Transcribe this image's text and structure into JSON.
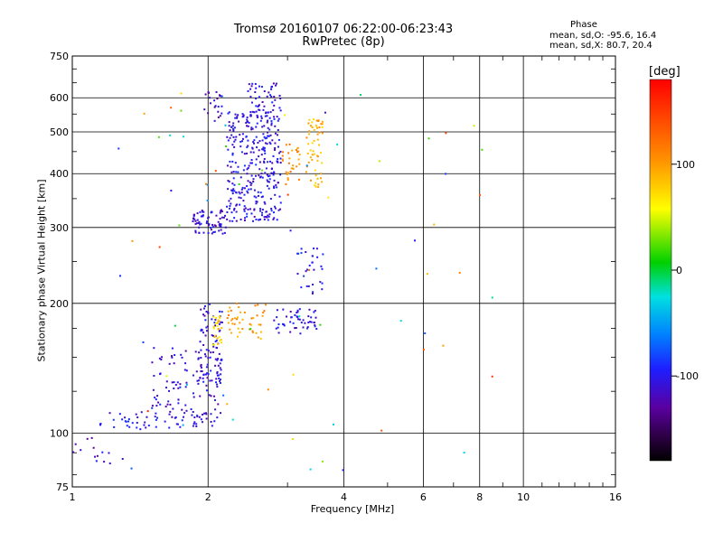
{
  "header": {
    "title_line1": "Tromsø 20160107 06:22:00-06:23:43",
    "title_line2": "RwPretec (8p)"
  },
  "phase_info": {
    "heading": "Phase",
    "line_o": "mean, sd,O: -95.6, 16.4",
    "line_x": "mean, sd,X:  80.7, 20.4"
  },
  "colorbar": {
    "unit_label": "[deg]",
    "range": [
      -180,
      180
    ],
    "tick_labels": [
      "100",
      "0",
      "-100"
    ],
    "tick_values": [
      100,
      0,
      -100
    ]
  },
  "chart_data": {
    "type": "scatter",
    "title": "Tromsø 20160107 06:22:00-06:23:43",
    "subtitle": "RwPretec (8p)",
    "xlabel": "Frequency [MHz]",
    "ylabel": "Stationary phase Virtual Height [km]",
    "xscale": "log",
    "yscale": "log",
    "xlim": [
      1,
      16
    ],
    "ylim": [
      75,
      750
    ],
    "x_ticks": [
      1,
      2,
      4,
      6,
      8,
      10,
      16
    ],
    "x_tick_labels": [
      "1",
      "2",
      "4",
      "6",
      "8",
      "10",
      "16"
    ],
    "y_ticks": [
      75,
      100,
      200,
      300,
      400,
      500,
      600,
      750
    ],
    "y_tick_labels": [
      "75",
      "100",
      "200",
      "300",
      "400",
      "500",
      "600",
      "750"
    ],
    "grid": true,
    "color_by": "phase (deg)",
    "clusters": [
      {
        "name": "",
        "x_range": [
          1.15,
          2.1
        ],
        "y_range": [
          102,
          112
        ],
        "count": 60,
        "phase": -105
      },
      {
        "name": "",
        "x_range": [
          1.5,
          2.15
        ],
        "y_range": [
          110,
          160
        ],
        "count": 110,
        "phase": -110
      },
      {
        "name": "",
        "x_range": [
          1.9,
          2.15
        ],
        "y_range": [
          130,
          200
        ],
        "count": 70,
        "phase": -110
      },
      {
        "name": "",
        "x_range": [
          2.05,
          2.15
        ],
        "y_range": [
          160,
          190
        ],
        "count": 25,
        "phase": 80
      },
      {
        "name": "",
        "x_range": [
          2.2,
          2.7
        ],
        "y_range": [
          165,
          200
        ],
        "count": 45,
        "phase": 100
      },
      {
        "name": "",
        "x_range": [
          2.8,
          3.5
        ],
        "y_range": [
          170,
          195
        ],
        "count": 50,
        "phase": -105
      },
      {
        "name": "",
        "x_range": [
          1.85,
          2.2
        ],
        "y_range": [
          290,
          330
        ],
        "count": 70,
        "phase": -110
      },
      {
        "name": "",
        "x_range": [
          2.2,
          2.9
        ],
        "y_range": [
          310,
          560
        ],
        "count": 330,
        "phase": -105
      },
      {
        "name": "",
        "x_range": [
          2.45,
          2.9
        ],
        "y_range": [
          550,
          650
        ],
        "count": 45,
        "phase": -110
      },
      {
        "name": "",
        "x_range": [
          1.95,
          2.15
        ],
        "y_range": [
          530,
          620
        ],
        "count": 22,
        "phase": -120
      },
      {
        "name": "",
        "x_range": [
          2.9,
          3.2
        ],
        "y_range": [
          370,
          470
        ],
        "count": 30,
        "phase": 110
      },
      {
        "name": "",
        "x_range": [
          3.3,
          3.6
        ],
        "y_range": [
          370,
          540
        ],
        "count": 55,
        "phase": 90
      },
      {
        "name": "",
        "x_range": [
          3.1,
          3.6
        ],
        "y_range": [
          210,
          270
        ],
        "count": 30,
        "phase": -100
      },
      {
        "name": "",
        "x_range": [
          1.0,
          1.3
        ],
        "y_range": [
          85,
          98
        ],
        "count": 14,
        "phase": -110
      },
      {
        "name": "",
        "x_range": [
          1.2,
          9.0
        ],
        "y_range": [
          80,
          620
        ],
        "count": 75,
        "phase": 30
      }
    ]
  }
}
